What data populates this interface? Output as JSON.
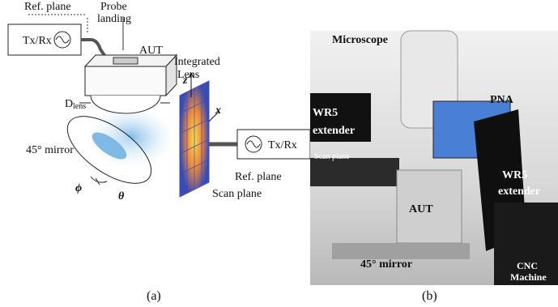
{
  "panel_a": {
    "ref_plane_top": "Ref. plane",
    "probe_landing": [
      "Probe",
      "landing"
    ],
    "txrx_left": "Tx/Rx",
    "aut": "AUT",
    "integrated_lens": [
      "Integrated",
      "Lens"
    ],
    "d_lens": {
      "main": "D",
      "sub": "lens"
    },
    "axis_z": "z",
    "axis_x": "x",
    "mirror": "45° mirror",
    "txrx_right": "Tx/Rx",
    "ref_plane_bottom": "Ref. plane",
    "scan_plane": "Scan plane",
    "phi": "ϕ",
    "theta": "θ",
    "caption": "(a)"
  },
  "panel_b": {
    "microscope": "Microscope",
    "pna": "PNA",
    "wr5_left": [
      "WR5",
      "extender"
    ],
    "scan_plane": "Scan plane",
    "aut": "AUT",
    "wr5_right": [
      "WR5",
      "extender"
    ],
    "mirror": "45° mirror",
    "cnc": [
      "CNC",
      "Machine"
    ],
    "caption": "(b)"
  }
}
